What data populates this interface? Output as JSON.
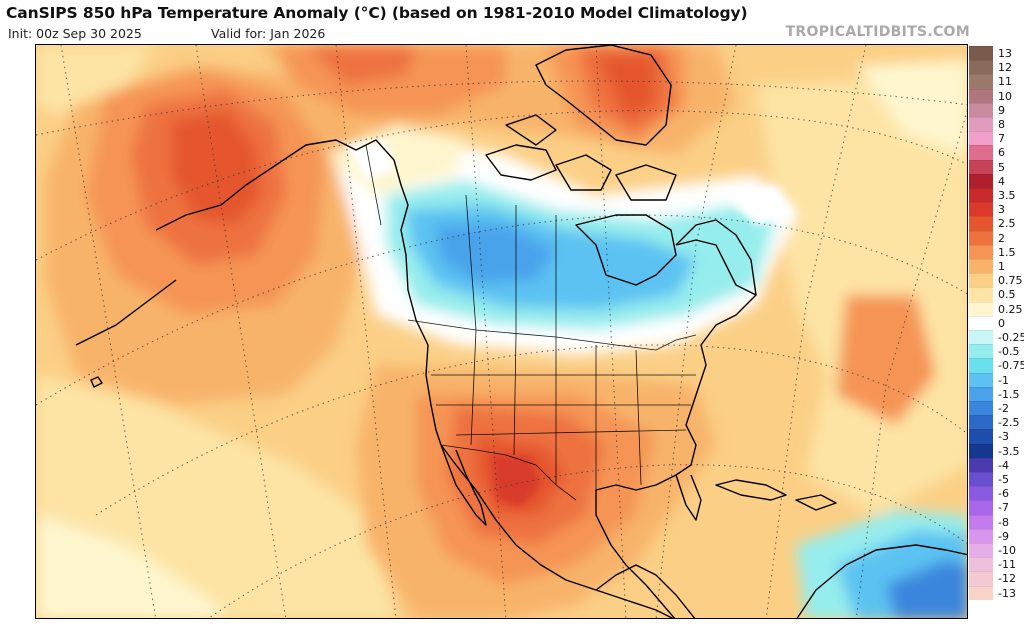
{
  "header": {
    "title": "CanSIPS 850 hPa Temperature Anomaly (°C) (based on 1981-2010 Model Climatology)",
    "init": "Init: 00z Sep 30 2025",
    "valid": "Valid for: Jan 2026",
    "brand": "TROPICALTIDBITS.COM"
  },
  "map": {
    "region": "North America",
    "variable": "850 hPa temperature anomaly",
    "units": "°C"
  },
  "legend": [
    {
      "label": "13",
      "color": "#7a5a4c"
    },
    {
      "label": "12",
      "color": "#8a6a5a"
    },
    {
      "label": "11",
      "color": "#9a7a6a"
    },
    {
      "label": "10",
      "color": "#b0767e"
    },
    {
      "label": "9",
      "color": "#c98aa0"
    },
    {
      "label": "8",
      "color": "#e19bbd"
    },
    {
      "label": "7",
      "color": "#ef9fc9"
    },
    {
      "label": "6",
      "color": "#df6e8e"
    },
    {
      "label": "5",
      "color": "#c8435a"
    },
    {
      "label": "4",
      "color": "#b01f2e"
    },
    {
      "label": "3.5",
      "color": "#c72a29"
    },
    {
      "label": "3",
      "color": "#d93a2c"
    },
    {
      "label": "2.5",
      "color": "#e5562f"
    },
    {
      "label": "2",
      "color": "#ee7240"
    },
    {
      "label": "1.5",
      "color": "#f59454"
    },
    {
      "label": "1",
      "color": "#f8b36a"
    },
    {
      "label": "0.75",
      "color": "#fbcf86"
    },
    {
      "label": "0.5",
      "color": "#fde4a5"
    },
    {
      "label": "0.25",
      "color": "#fff6cf"
    },
    {
      "label": "0",
      "color": "#ffffff"
    },
    {
      "label": "-0.25",
      "color": "#c9f6f6"
    },
    {
      "label": "-0.5",
      "color": "#96eded"
    },
    {
      "label": "-0.75",
      "color": "#6ae0ef"
    },
    {
      "label": "-1",
      "color": "#5cc2f2"
    },
    {
      "label": "-1.5",
      "color": "#4aa3ea"
    },
    {
      "label": "-2",
      "color": "#3b86dd"
    },
    {
      "label": "-2.5",
      "color": "#2d69c8"
    },
    {
      "label": "-3",
      "color": "#1f4fae"
    },
    {
      "label": "-3.5",
      "color": "#14388e"
    },
    {
      "label": "-4",
      "color": "#4a3bb0"
    },
    {
      "label": "-5",
      "color": "#6a4ed0"
    },
    {
      "label": "-6",
      "color": "#8a5be0"
    },
    {
      "label": "-7",
      "color": "#a867ea"
    },
    {
      "label": "-8",
      "color": "#c47bee"
    },
    {
      "label": "-9",
      "color": "#d896ee"
    },
    {
      "label": "-10",
      "color": "#e5aee8"
    },
    {
      "label": "-11",
      "color": "#eec0de"
    },
    {
      "label": "-12",
      "color": "#f4c9d2"
    },
    {
      "label": "-13",
      "color": "#f8d3c8"
    }
  ]
}
